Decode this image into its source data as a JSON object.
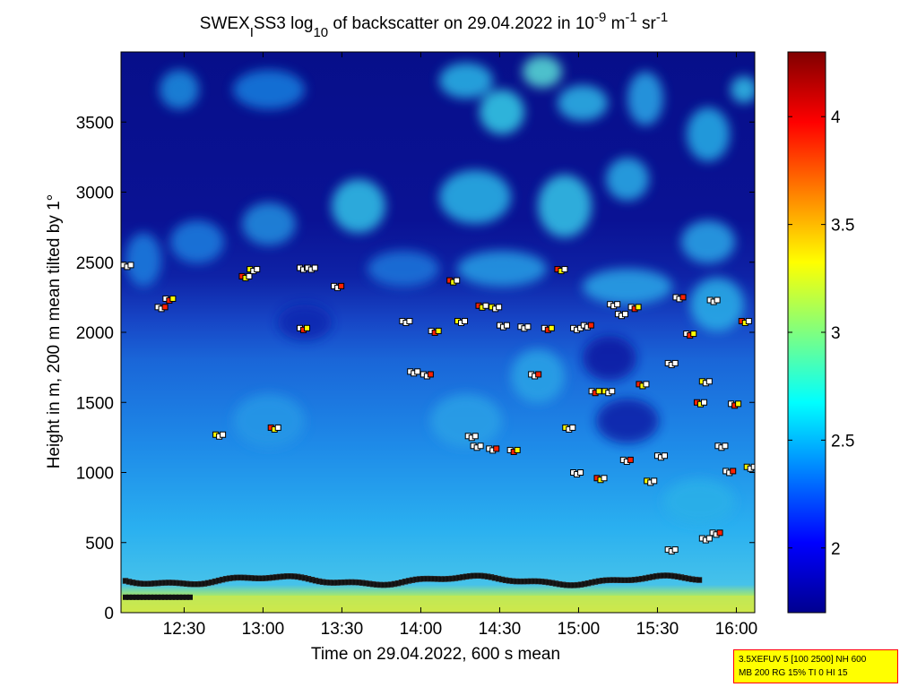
{
  "chart_data": {
    "type": "heatmap",
    "title": {
      "parts": [
        {
          "text": "SWEX"
        },
        {
          "text": "I",
          "shift": "sub"
        },
        {
          "text": "SS3 log"
        },
        {
          "text": "10",
          "shift": "sub"
        },
        {
          "text": " of backscatter on 29.04.2022 in 10"
        },
        {
          "text": "-9",
          "shift": "super"
        },
        {
          "text": " m"
        },
        {
          "text": "-1",
          "shift": "super"
        },
        {
          "text": " sr"
        },
        {
          "text": "-1",
          "shift": "super"
        }
      ]
    },
    "xlabel": "Time on 29.04.2022, 600 s mean",
    "ylabel": "Height in m, 200 m mean tilted by 1°",
    "xlim": [
      "12:06",
      "16:07"
    ],
    "ylim": [
      0,
      4000
    ],
    "x_ticks": [
      "12:30",
      "13:00",
      "13:30",
      "14:00",
      "14:30",
      "15:00",
      "15:30",
      "16:00"
    ],
    "y_ticks": [
      "0",
      "500",
      "1000",
      "1500",
      "2000",
      "2500",
      "3000",
      "3500"
    ],
    "colorbar": {
      "range": [
        1.7,
        4.3
      ],
      "ticks": [
        "2",
        "2.5",
        "3",
        "3.5",
        "4"
      ],
      "colormap": "jet"
    },
    "field": {
      "description_levels": [
        {
          "height_from": 0,
          "height_to": 150,
          "level": 3.15
        },
        {
          "height_from": 150,
          "height_to": 700,
          "level": 2.6
        },
        {
          "height_from": 700,
          "height_to": 2000,
          "level": 2.35
        },
        {
          "height_from": 2000,
          "height_to": 4000,
          "level": 1.8
        }
      ]
    },
    "detections": {
      "low_layer_height_m": 230,
      "cloud_base_samples": [
        {
          "x": "12:07",
          "y": 2480
        },
        {
          "x": "12:20",
          "y": 2180
        },
        {
          "x": "12:23",
          "y": 2240
        },
        {
          "x": "12:52",
          "y": 2400
        },
        {
          "x": "12:55",
          "y": 2450
        },
        {
          "x": "13:14",
          "y": 2460
        },
        {
          "x": "13:17",
          "y": 2460
        },
        {
          "x": "13:27",
          "y": 2330
        },
        {
          "x": "13:14",
          "y": 2030
        },
        {
          "x": "13:03",
          "y": 1320
        },
        {
          "x": "12:42",
          "y": 1270
        },
        {
          "x": "13:53",
          "y": 2080
        },
        {
          "x": "13:56",
          "y": 1720
        },
        {
          "x": "14:01",
          "y": 1700
        },
        {
          "x": "14:04",
          "y": 2010
        },
        {
          "x": "14:11",
          "y": 2370
        },
        {
          "x": "14:14",
          "y": 2080
        },
        {
          "x": "14:18",
          "y": 1260
        },
        {
          "x": "14:20",
          "y": 1190
        },
        {
          "x": "14:26",
          "y": 1170
        },
        {
          "x": "14:34",
          "y": 1160
        },
        {
          "x": "14:22",
          "y": 2190
        },
        {
          "x": "14:27",
          "y": 2180
        },
        {
          "x": "14:30",
          "y": 2050
        },
        {
          "x": "14:38",
          "y": 2040
        },
        {
          "x": "14:42",
          "y": 1700
        },
        {
          "x": "14:47",
          "y": 2030
        },
        {
          "x": "14:52",
          "y": 2450
        },
        {
          "x": "14:55",
          "y": 1320
        },
        {
          "x": "14:58",
          "y": 2030
        },
        {
          "x": "14:58",
          "y": 1000
        },
        {
          "x": "15:02",
          "y": 2050
        },
        {
          "x": "15:05",
          "y": 1580
        },
        {
          "x": "15:07",
          "y": 960
        },
        {
          "x": "15:10",
          "y": 1580
        },
        {
          "x": "15:12",
          "y": 2200
        },
        {
          "x": "15:15",
          "y": 2130
        },
        {
          "x": "15:17",
          "y": 1090
        },
        {
          "x": "15:20",
          "y": 2180
        },
        {
          "x": "15:23",
          "y": 1630
        },
        {
          "x": "15:26",
          "y": 940
        },
        {
          "x": "15:30",
          "y": 1120
        },
        {
          "x": "15:34",
          "y": 1780
        },
        {
          "x": "15:37",
          "y": 2250
        },
        {
          "x": "15:41",
          "y": 1990
        },
        {
          "x": "15:45",
          "y": 1500
        },
        {
          "x": "15:47",
          "y": 1650
        },
        {
          "x": "15:50",
          "y": 2230
        },
        {
          "x": "15:53",
          "y": 1190
        },
        {
          "x": "15:56",
          "y": 1010
        },
        {
          "x": "15:58",
          "y": 1490
        },
        {
          "x": "16:02",
          "y": 2080
        },
        {
          "x": "16:04",
          "y": 1040
        },
        {
          "x": "15:34",
          "y": 450
        },
        {
          "x": "15:47",
          "y": 530
        },
        {
          "x": "15:51",
          "y": 570
        }
      ]
    }
  },
  "info_box": {
    "line1": "3.5XEFUV 5 [100 2500] NH 600",
    "line2": "MB 200 RG 15% TI 0 HI 15"
  }
}
